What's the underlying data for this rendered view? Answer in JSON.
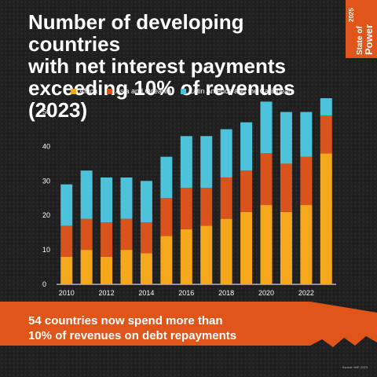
{
  "title": {
    "line1": "Number of developing countries",
    "line2": "with net interest payments",
    "line3": "exceeding 10% of revenues (2023)"
  },
  "badge": {
    "year": "2025",
    "line1": "State of",
    "line2": "Power"
  },
  "banner": {
    "line1": "54 countries now spend more than",
    "line2": "10% of revenues on debt repayments"
  },
  "source": "Source: IMF, 2023",
  "chart_data": {
    "type": "bar",
    "stacked": true,
    "categories": [
      "2010",
      "2011",
      "2012",
      "2013",
      "2014",
      "2015",
      "2016",
      "2017",
      "2018",
      "2019",
      "2020",
      "2021",
      "2022",
      "2023"
    ],
    "x_tick_labels": [
      "2010",
      "2012",
      "2014",
      "2016",
      "2018",
      "2020",
      "2022"
    ],
    "series": [
      {
        "name": "Africa",
        "color": "#f5a81c",
        "values": [
          8,
          10,
          8,
          10,
          9,
          14,
          16,
          17,
          19,
          21,
          23,
          21,
          23,
          38
        ]
      },
      {
        "name": "Asia and Oceania",
        "color": "#d9541c",
        "values": [
          9,
          9,
          10,
          9,
          9,
          11,
          12,
          11,
          12,
          12,
          15,
          14,
          14,
          11
        ]
      },
      {
        "name": "Latin America and the Caribbean",
        "color": "#4cc3db",
        "values": [
          12,
          14,
          13,
          12,
          12,
          12,
          15,
          15,
          14,
          14,
          15,
          15,
          13,
          5
        ]
      }
    ],
    "y_ticks": [
      0,
      10,
      20,
      30,
      40,
      50
    ],
    "ylim": [
      0,
      54
    ],
    "legend_position": "top",
    "grid": false
  }
}
